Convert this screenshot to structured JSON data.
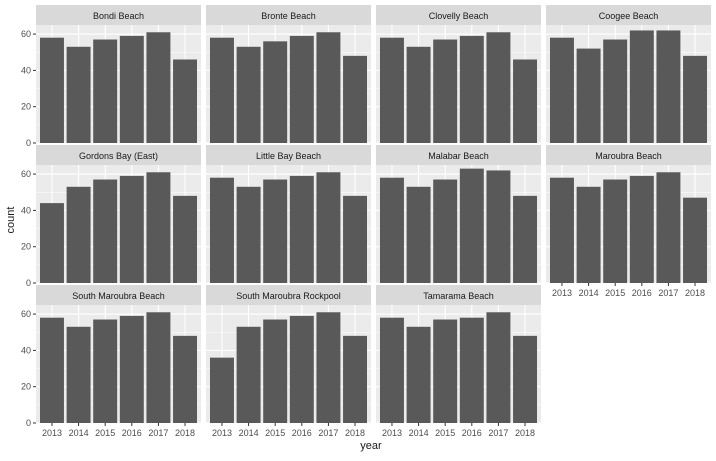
{
  "chart_data": {
    "type": "bar",
    "layout": "facet_wrap",
    "xlabel": "year",
    "ylabel": "count",
    "categories": [
      "2013",
      "2014",
      "2015",
      "2016",
      "2017",
      "2018"
    ],
    "ylim": [
      0,
      65
    ],
    "yticks": [
      0,
      20,
      40,
      60
    ],
    "grid": true,
    "bar_color": "#595959",
    "panel_background": "#ebebeb",
    "strip_background": "#d9d9d9",
    "panels": [
      {
        "title": "Bondi Beach",
        "values": [
          58,
          53,
          57,
          59,
          61,
          46
        ]
      },
      {
        "title": "Bronte Beach",
        "values": [
          58,
          53,
          56,
          59,
          61,
          48
        ]
      },
      {
        "title": "Clovelly Beach",
        "values": [
          58,
          53,
          57,
          59,
          61,
          46
        ]
      },
      {
        "title": "Coogee Beach",
        "values": [
          58,
          52,
          57,
          62,
          62,
          48
        ]
      },
      {
        "title": "Gordons Bay (East)",
        "values": [
          44,
          53,
          57,
          59,
          61,
          48
        ]
      },
      {
        "title": "Little Bay Beach",
        "values": [
          58,
          53,
          57,
          59,
          61,
          48
        ]
      },
      {
        "title": "Malabar Beach",
        "values": [
          58,
          53,
          57,
          63,
          62,
          48
        ]
      },
      {
        "title": "Maroubra Beach",
        "values": [
          58,
          53,
          57,
          59,
          61,
          47
        ]
      },
      {
        "title": "South Maroubra Beach",
        "values": [
          58,
          53,
          57,
          59,
          61,
          48
        ]
      },
      {
        "title": "South Maroubra Rockpool",
        "values": [
          36,
          53,
          57,
          59,
          61,
          48
        ]
      },
      {
        "title": "Tamarama Beach",
        "values": [
          58,
          53,
          57,
          58,
          61,
          48
        ]
      }
    ]
  }
}
